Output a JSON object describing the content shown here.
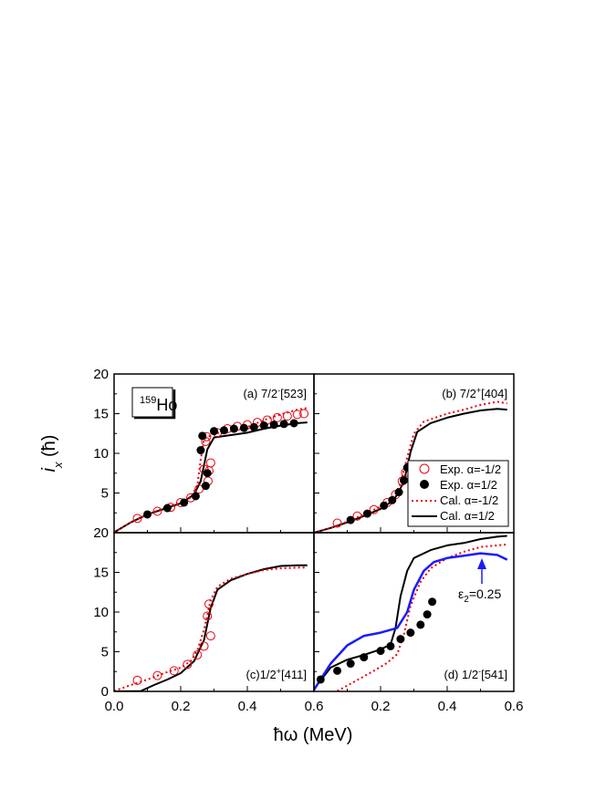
{
  "chart_data": {
    "type": "scatter",
    "xlabel": "ħω (MeV)",
    "ylabel": "i_x (ħ)",
    "xlim": [
      0.0,
      0.6
    ],
    "ylim": [
      0,
      20
    ],
    "grid": false,
    "nucleus": {
      "mass": "159",
      "symbol": "Ho"
    },
    "x_tick_labels_left": [
      "0.0",
      "0.2",
      "0.4",
      "0.6"
    ],
    "x_tick_labels_right": [
      "0.2",
      "0.4",
      "0.6"
    ],
    "y_tick_labels_top": [
      "20",
      "15",
      "10",
      "5"
    ],
    "y_tick_labels_bottom": [
      "20",
      "15",
      "10",
      "5",
      "0"
    ],
    "legend": {
      "placement": "panel-b-lower-right",
      "entries": [
        {
          "label": "Exp.  α=-1/2",
          "marker": "open-circle",
          "color": "#e8000b"
        },
        {
          "label": "Exp.  α=1/2",
          "marker": "filled-circle",
          "color": "#000000"
        },
        {
          "label": "Cal.   α=-1/2",
          "line": "dotted",
          "color": "#e8000b"
        },
        {
          "label": "Cal.   α=1/2",
          "line": "solid",
          "color": "#000000"
        }
      ]
    },
    "colors": {
      "exp_minus": "#e8000b",
      "exp_plus": "#000000",
      "cal_minus": "#e8000b",
      "cal_plus": "#000000",
      "cal_eps": "#1a1aff"
    },
    "panels": [
      {
        "id": "a",
        "label": "(a) 7/2",
        "label_sup": "-",
        "label_tail": "[523]",
        "exp_minus": [
          [
            0.07,
            1.8
          ],
          [
            0.13,
            2.7
          ],
          [
            0.17,
            3.2
          ],
          [
            0.2,
            3.8
          ],
          [
            0.23,
            4.4
          ],
          [
            0.255,
            5.5
          ],
          [
            0.27,
            8.0
          ],
          [
            0.275,
            11.5
          ],
          [
            0.278,
            12.1
          ],
          [
            0.282,
            6.5
          ],
          [
            0.285,
            7.8
          ],
          [
            0.29,
            8.8
          ],
          [
            0.31,
            12.6
          ],
          [
            0.34,
            13.1
          ],
          [
            0.37,
            13.4
          ],
          [
            0.4,
            13.6
          ],
          [
            0.43,
            13.9
          ],
          [
            0.46,
            14.2
          ],
          [
            0.49,
            14.5
          ],
          [
            0.52,
            14.7
          ],
          [
            0.55,
            14.9
          ],
          [
            0.57,
            15.0
          ]
        ],
        "exp_plus": [
          [
            0.1,
            2.3
          ],
          [
            0.16,
            3.1
          ],
          [
            0.21,
            3.8
          ],
          [
            0.245,
            4.6
          ],
          [
            0.26,
            10.4
          ],
          [
            0.265,
            12.2
          ],
          [
            0.275,
            5.9
          ],
          [
            0.28,
            7.5
          ],
          [
            0.3,
            12.8
          ],
          [
            0.33,
            12.9
          ],
          [
            0.36,
            13.1
          ],
          [
            0.39,
            13.2
          ],
          [
            0.42,
            13.3
          ],
          [
            0.45,
            13.5
          ],
          [
            0.48,
            13.6
          ],
          [
            0.51,
            13.7
          ],
          [
            0.54,
            13.8
          ]
        ],
        "cal_minus": [
          [
            0.0,
            0.05
          ],
          [
            0.05,
            1.3
          ],
          [
            0.1,
            2.3
          ],
          [
            0.15,
            3.1
          ],
          [
            0.2,
            3.8
          ],
          [
            0.23,
            4.4
          ],
          [
            0.25,
            6.0
          ],
          [
            0.26,
            9.2
          ],
          [
            0.27,
            11.8
          ],
          [
            0.3,
            12.5
          ],
          [
            0.35,
            12.8
          ],
          [
            0.4,
            13.3
          ],
          [
            0.45,
            14.2
          ],
          [
            0.5,
            14.9
          ],
          [
            0.55,
            15.5
          ],
          [
            0.58,
            15.7
          ]
        ],
        "cal_plus": [
          [
            0.0,
            0.05
          ],
          [
            0.05,
            1.3
          ],
          [
            0.1,
            2.3
          ],
          [
            0.15,
            3.0
          ],
          [
            0.2,
            3.7
          ],
          [
            0.24,
            4.8
          ],
          [
            0.26,
            6.5
          ],
          [
            0.28,
            10.5
          ],
          [
            0.3,
            12.0
          ],
          [
            0.35,
            12.3
          ],
          [
            0.4,
            12.6
          ],
          [
            0.45,
            13.1
          ],
          [
            0.5,
            13.5
          ],
          [
            0.55,
            13.8
          ],
          [
            0.58,
            13.9
          ]
        ]
      },
      {
        "id": "b",
        "label": "(b) 7/2",
        "label_sup": "+",
        "label_tail": "[404]",
        "exp_minus": [
          [
            0.07,
            1.2
          ],
          [
            0.13,
            2.1
          ],
          [
            0.18,
            2.9
          ],
          [
            0.22,
            3.8
          ],
          [
            0.245,
            4.8
          ],
          [
            0.265,
            6.5
          ],
          [
            0.275,
            7.6
          ]
        ],
        "exp_plus": [
          [
            0.11,
            1.6
          ],
          [
            0.16,
            2.4
          ],
          [
            0.21,
            3.4
          ],
          [
            0.235,
            4.1
          ],
          [
            0.255,
            5.1
          ],
          [
            0.27,
            6.6
          ],
          [
            0.28,
            8.2
          ]
        ],
        "cal_minus": [
          [
            0.0,
            0.0
          ],
          [
            0.05,
            0.6
          ],
          [
            0.1,
            1.4
          ],
          [
            0.15,
            2.3
          ],
          [
            0.2,
            3.3
          ],
          [
            0.24,
            4.6
          ],
          [
            0.26,
            6.2
          ],
          [
            0.28,
            9.5
          ],
          [
            0.3,
            12.5
          ],
          [
            0.33,
            14.0
          ],
          [
            0.4,
            15.0
          ],
          [
            0.45,
            15.5
          ],
          [
            0.5,
            16.1
          ],
          [
            0.55,
            16.5
          ],
          [
            0.58,
            16.3
          ]
        ],
        "cal_plus": [
          [
            0.0,
            0.0
          ],
          [
            0.05,
            0.6
          ],
          [
            0.1,
            1.3
          ],
          [
            0.15,
            2.1
          ],
          [
            0.2,
            3.0
          ],
          [
            0.24,
            4.1
          ],
          [
            0.27,
            6.4
          ],
          [
            0.29,
            10.2
          ],
          [
            0.31,
            12.7
          ],
          [
            0.35,
            13.8
          ],
          [
            0.4,
            14.5
          ],
          [
            0.45,
            15.0
          ],
          [
            0.5,
            15.4
          ],
          [
            0.55,
            15.6
          ],
          [
            0.58,
            15.5
          ]
        ]
      },
      {
        "id": "c",
        "label": "(c)1/2",
        "label_sup": "+",
        "label_tail": "[411]",
        "exp_minus": [
          [
            0.07,
            1.4
          ],
          [
            0.13,
            2.0
          ],
          [
            0.18,
            2.6
          ],
          [
            0.22,
            3.4
          ],
          [
            0.25,
            4.6
          ],
          [
            0.27,
            5.7
          ],
          [
            0.28,
            9.5
          ],
          [
            0.285,
            11.0
          ],
          [
            0.29,
            7.0
          ]
        ],
        "exp_plus": [],
        "cal_minus": [
          [
            0.0,
            0.05
          ],
          [
            0.05,
            0.8
          ],
          [
            0.1,
            1.5
          ],
          [
            0.15,
            2.3
          ],
          [
            0.2,
            3.0
          ],
          [
            0.23,
            3.8
          ],
          [
            0.25,
            5.2
          ],
          [
            0.27,
            7.8
          ],
          [
            0.29,
            11.5
          ],
          [
            0.31,
            13.2
          ],
          [
            0.35,
            14.2
          ],
          [
            0.4,
            14.8
          ],
          [
            0.45,
            15.3
          ],
          [
            0.5,
            15.5
          ],
          [
            0.55,
            15.6
          ],
          [
            0.58,
            15.6
          ]
        ],
        "cal_plus": [
          [
            0.0,
            0.0
          ],
          [
            0.08,
            0.05
          ],
          [
            0.12,
            0.8
          ],
          [
            0.16,
            1.5
          ],
          [
            0.2,
            2.3
          ],
          [
            0.24,
            3.8
          ],
          [
            0.27,
            6.5
          ],
          [
            0.29,
            10.5
          ],
          [
            0.31,
            12.8
          ],
          [
            0.35,
            14.0
          ],
          [
            0.4,
            14.8
          ],
          [
            0.45,
            15.4
          ],
          [
            0.5,
            15.8
          ],
          [
            0.55,
            15.9
          ],
          [
            0.58,
            15.9
          ]
        ]
      },
      {
        "id": "d",
        "label": "(d) 1/2",
        "label_sup": "-",
        "label_tail": "[541]",
        "annotation": "ε",
        "annotation_sub": "2",
        "annotation_tail": "=0.25",
        "exp_minus": [],
        "exp_plus": [
          [
            0.02,
            1.5
          ],
          [
            0.07,
            2.6
          ],
          [
            0.11,
            3.5
          ],
          [
            0.15,
            4.3
          ],
          [
            0.2,
            5.1
          ],
          [
            0.23,
            5.7
          ],
          [
            0.26,
            6.6
          ],
          [
            0.29,
            7.4
          ],
          [
            0.32,
            8.4
          ],
          [
            0.34,
            9.7
          ],
          [
            0.355,
            11.3
          ]
        ],
        "cal_minus": [
          [
            0.07,
            0.05
          ],
          [
            0.12,
            1.2
          ],
          [
            0.18,
            2.6
          ],
          [
            0.22,
            3.6
          ],
          [
            0.25,
            4.7
          ],
          [
            0.27,
            7.2
          ],
          [
            0.29,
            10.8
          ],
          [
            0.32,
            13.8
          ],
          [
            0.35,
            15.5
          ],
          [
            0.4,
            16.8
          ],
          [
            0.45,
            17.6
          ],
          [
            0.5,
            18.2
          ],
          [
            0.55,
            18.4
          ],
          [
            0.58,
            18.5
          ]
        ],
        "cal_plus": [
          [
            0.0,
            0.3
          ],
          [
            0.05,
            3.0
          ],
          [
            0.1,
            4.0
          ],
          [
            0.15,
            4.6
          ],
          [
            0.2,
            5.3
          ],
          [
            0.23,
            5.9
          ],
          [
            0.245,
            8.0
          ],
          [
            0.26,
            12.0
          ],
          [
            0.28,
            15.2
          ],
          [
            0.3,
            16.8
          ],
          [
            0.35,
            17.8
          ],
          [
            0.4,
            18.4
          ],
          [
            0.45,
            18.7
          ],
          [
            0.5,
            19.2
          ],
          [
            0.55,
            19.5
          ],
          [
            0.58,
            19.6
          ]
        ],
        "cal_eps": [
          [
            0.0,
            0.2
          ],
          [
            0.05,
            3.5
          ],
          [
            0.1,
            5.8
          ],
          [
            0.15,
            7.0
          ],
          [
            0.2,
            7.4
          ],
          [
            0.25,
            8.0
          ],
          [
            0.28,
            10.0
          ],
          [
            0.3,
            12.8
          ],
          [
            0.33,
            15.2
          ],
          [
            0.36,
            16.3
          ],
          [
            0.4,
            16.8
          ],
          [
            0.45,
            17.1
          ],
          [
            0.5,
            17.4
          ],
          [
            0.55,
            17.2
          ],
          [
            0.58,
            16.6
          ]
        ]
      }
    ]
  }
}
